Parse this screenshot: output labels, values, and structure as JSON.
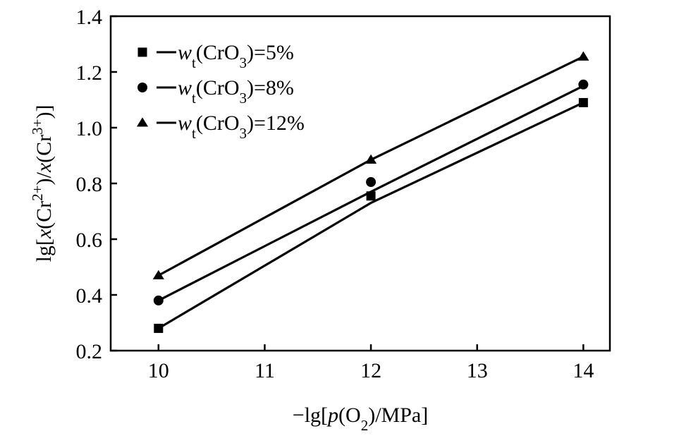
{
  "chart_data": {
    "type": "line",
    "title": "",
    "xlabel": "−lg[p(O2)/MPa]",
    "ylabel": "lg[x(Cr2+)/x(Cr3+)]",
    "xlim": [
      9.55,
      14.25
    ],
    "ylim": [
      0.2,
      1.4
    ],
    "x_ticks": [
      10,
      11,
      12,
      13,
      14
    ],
    "x_tick_labels": [
      "10",
      "11",
      "12",
      "13",
      "14"
    ],
    "y_ticks": [
      0.2,
      0.4,
      0.6,
      0.8,
      1.0,
      1.2,
      1.4
    ],
    "y_tick_labels": [
      "0.2",
      "0.4",
      "0.6",
      "0.8",
      "1.0",
      "1.2",
      "1.4"
    ],
    "grid": false,
    "legend_position": "top-left",
    "series": [
      {
        "name": "wt(CrO3)=5%",
        "marker": "square",
        "x": [
          10,
          12,
          14
        ],
        "y": [
          0.28,
          0.755,
          1.09
        ],
        "fit": [
          [
            10,
            0.28
          ],
          [
            12,
            0.73
          ],
          [
            14,
            1.09
          ]
        ]
      },
      {
        "name": "wt(CrO3)=8%",
        "marker": "circle",
        "x": [
          10,
          12,
          14
        ],
        "y": [
          0.38,
          0.805,
          1.155
        ],
        "fit": [
          [
            10,
            0.38
          ],
          [
            12,
            0.77
          ],
          [
            14,
            1.15
          ]
        ]
      },
      {
        "name": "wt(CrO3)=12%",
        "marker": "triangle",
        "x": [
          10,
          12,
          14
        ],
        "y": [
          0.47,
          0.885,
          1.255
        ],
        "fit": [
          [
            10,
            0.47
          ],
          [
            12,
            0.885
          ],
          [
            14,
            1.255
          ]
        ]
      }
    ]
  }
}
